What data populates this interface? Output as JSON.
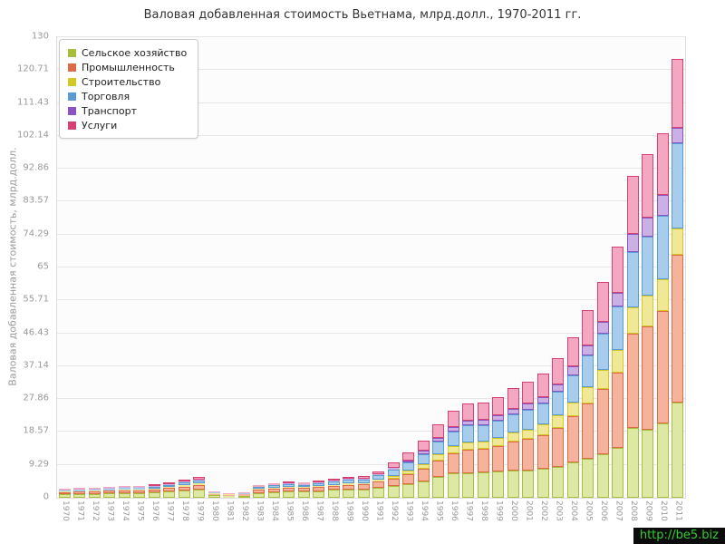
{
  "title": "Валовая добавленная стоимость Вьетнама, млрд.долл., 1970-2011 гг.",
  "y_axis": {
    "label": "Валовая добавленная стоимость, млрд.долл.",
    "ticks": [
      "0",
      "9.29",
      "18.57",
      "27.86",
      "37.14",
      "46.43",
      "55.71",
      "65",
      "74.29",
      "83.57",
      "92.86",
      "102.14",
      "111.43",
      "120.71",
      "130"
    ]
  },
  "watermark": "http://be5.biz",
  "chart_data": {
    "type": "bar",
    "stacked": true,
    "title": "Валовая добавленная стоимость Вьетнама, млрд.долл., 1970-2011 гг.",
    "xlabel": "",
    "ylabel": "Валовая добавленная стоимость, млрд.долл.",
    "ylim": [
      0,
      130
    ],
    "grid": "horizontal",
    "legend_position": "top-left",
    "categories": [
      "1970",
      "1971",
      "1972",
      "1973",
      "1974",
      "1975",
      "1976",
      "1977",
      "1978",
      "1979",
      "1980",
      "1981",
      "1982",
      "1983",
      "1984",
      "1985",
      "1986",
      "1987",
      "1988",
      "1989",
      "1990",
      "1991",
      "1992",
      "1993",
      "1994",
      "1995",
      "1996",
      "1997",
      "1998",
      "1999",
      "2000",
      "2001",
      "2002",
      "2003",
      "2004",
      "2005",
      "2006",
      "2007",
      "2008",
      "2009",
      "2010",
      "2011"
    ],
    "series": [
      {
        "name": "Сельское хозяйство",
        "color": "#a9bf3c",
        "fill": "#dce8a4",
        "values": [
          1.0,
          1.1,
          1.1,
          1.2,
          1.3,
          1.3,
          1.5,
          1.7,
          2.0,
          2.3,
          0.7,
          0.5,
          0.6,
          1.4,
          1.6,
          1.8,
          1.7,
          1.9,
          2.2,
          2.4,
          2.4,
          2.9,
          3.3,
          3.8,
          4.6,
          5.8,
          6.8,
          7.0,
          7.1,
          7.4,
          7.6,
          7.7,
          8.1,
          8.7,
          10.0,
          11.1,
          12.4,
          14.1,
          19.7,
          19.2,
          21.0,
          27.0
        ]
      },
      {
        "name": "Промышленность",
        "color": "#dd6b47",
        "fill": "#f5b39c",
        "values": [
          0.6,
          0.65,
          0.7,
          0.75,
          0.8,
          0.8,
          0.9,
          1.0,
          1.2,
          1.4,
          0.4,
          0.3,
          0.35,
          0.8,
          0.95,
          1.05,
          1.0,
          1.1,
          1.2,
          1.3,
          1.4,
          1.7,
          2.2,
          2.9,
          3.7,
          4.8,
          5.7,
          6.5,
          6.6,
          7.2,
          8.3,
          8.9,
          9.6,
          11.1,
          13.0,
          15.5,
          18.2,
          21.2,
          26.6,
          29.2,
          31.7,
          41.5
        ]
      },
      {
        "name": "Строительство",
        "color": "#d4c825",
        "fill": "#f0e896",
        "values": [
          0.15,
          0.15,
          0.2,
          0.2,
          0.2,
          0.2,
          0.25,
          0.3,
          0.35,
          0.4,
          0.1,
          0.1,
          0.1,
          0.25,
          0.3,
          0.3,
          0.3,
          0.3,
          0.3,
          0.35,
          0.4,
          0.5,
          0.7,
          1.0,
          1.3,
          1.6,
          2.0,
          2.2,
          2.2,
          2.3,
          2.5,
          2.7,
          3.0,
          3.5,
          4.0,
          4.6,
          5.4,
          6.4,
          7.4,
          8.6,
          9.0,
          7.5
        ]
      },
      {
        "name": "Торговля",
        "color": "#5a9bd4",
        "fill": "#a8cdec",
        "values": [
          0.35,
          0.4,
          0.4,
          0.45,
          0.5,
          0.5,
          0.55,
          0.6,
          0.7,
          0.85,
          0.3,
          0.2,
          0.25,
          0.55,
          0.65,
          0.75,
          0.7,
          0.8,
          0.85,
          0.95,
          1.0,
          1.2,
          1.7,
          2.2,
          2.8,
          3.6,
          4.3,
          4.7,
          4.7,
          4.9,
          5.2,
          5.5,
          5.9,
          6.6,
          7.6,
          8.9,
          10.3,
          12.2,
          15.7,
          16.8,
          18.0,
          24.0
        ]
      },
      {
        "name": "Транспорт",
        "color": "#8a55c2",
        "fill": "#cbb0e4",
        "values": [
          0.1,
          0.1,
          0.1,
          0.1,
          0.15,
          0.15,
          0.15,
          0.2,
          0.25,
          0.25,
          0.1,
          0.05,
          0.1,
          0.15,
          0.2,
          0.2,
          0.2,
          0.2,
          0.25,
          0.3,
          0.3,
          0.35,
          0.5,
          0.6,
          0.8,
          1.0,
          1.2,
          1.3,
          1.3,
          1.4,
          1.6,
          1.7,
          1.8,
          2.1,
          2.4,
          2.9,
          3.4,
          4.0,
          5.0,
          5.4,
          5.8,
          4.5
        ]
      },
      {
        "name": "Услуги",
        "color": "#d84072",
        "fill": "#f3a7c1",
        "values": [
          0.3,
          0.35,
          0.4,
          0.4,
          0.45,
          0.45,
          0.55,
          0.6,
          0.7,
          0.8,
          0.2,
          0.15,
          0.2,
          0.45,
          0.5,
          0.6,
          0.5,
          0.6,
          0.6,
          0.7,
          0.7,
          0.85,
          1.5,
          2.2,
          2.9,
          3.9,
          4.6,
          5.0,
          5.1,
          5.3,
          5.9,
          6.2,
          6.6,
          7.4,
          8.4,
          9.9,
          11.3,
          13.1,
          16.4,
          17.8,
          17.5,
          19.5
        ]
      }
    ]
  }
}
